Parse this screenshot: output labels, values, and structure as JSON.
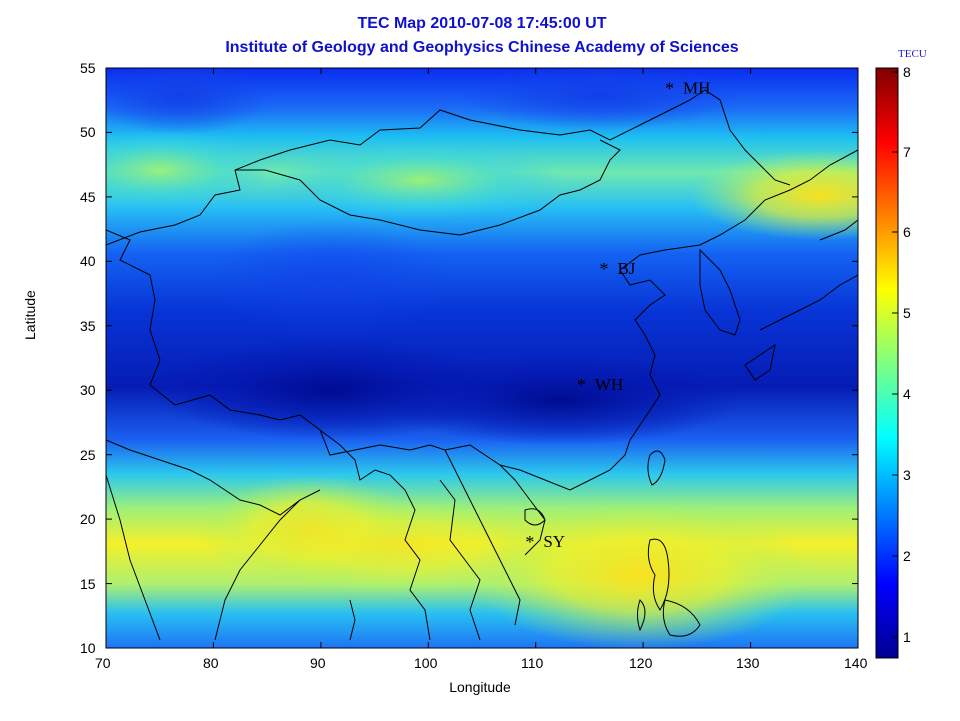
{
  "title_line1": "TEC Map 2010-07-08 17:45:00 UT",
  "title_line2": "Institute of Geology and Geophysics Chinese Academy of Sciences",
  "xlabel": "Longitude",
  "ylabel": "Latitude",
  "colorbar_unit": "TECU",
  "x_ticks": [
    "70",
    "80",
    "90",
    "100",
    "110",
    "120",
    "130",
    "140"
  ],
  "y_ticks": [
    "55",
    "50",
    "45",
    "40",
    "35",
    "30",
    "25",
    "20",
    "15",
    "10"
  ],
  "cbar_ticks": [
    "8",
    "7",
    "6",
    "5",
    "4",
    "3",
    "2",
    "1"
  ],
  "stations": [
    {
      "name": "MH",
      "lon": 122.5,
      "lat": 53.5
    },
    {
      "name": "BJ",
      "lon": 116.4,
      "lat": 39.5
    },
    {
      "name": "WH",
      "lon": 114.3,
      "lat": 30.5
    },
    {
      "name": "SY",
      "lon": 109.5,
      "lat": 18.3
    }
  ],
  "chart_data": {
    "type": "heatmap",
    "title": "TEC Map 2010-07-08 17:45:00 UT",
    "subtitle": "Institute of Geology and Geophysics Chinese Academy of Sciences",
    "xlabel": "Longitude",
    "ylabel": "Latitude",
    "xlim": [
      70,
      140
    ],
    "ylim": [
      10,
      55
    ],
    "colorbar_range": [
      0.8,
      8
    ],
    "colormap": "jet"
  }
}
